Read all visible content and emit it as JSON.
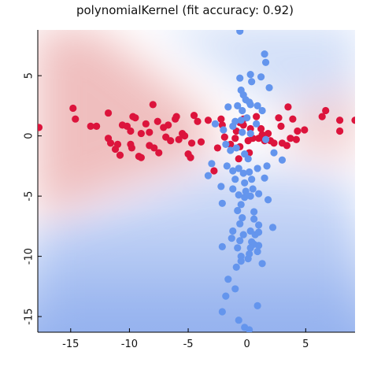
{
  "chart_data": {
    "type": "scatter",
    "title": "polynomialKernel (fit accuracy: 0.92)",
    "xlabel": "",
    "ylabel": "",
    "xlim": [
      -17.8,
      9.2
    ],
    "ylim": [
      -16.3,
      8.8
    ],
    "xticks": [
      -15,
      -10,
      -5,
      0,
      5
    ],
    "yticks": [
      5,
      0,
      -5,
      -10,
      -15
    ],
    "grid": false,
    "legend": "none",
    "background": "decision-region shading: red (class 1) in left and right wedges along y≈0, blue (class 2) above and below",
    "colors": {
      "class_red": "#dc143c",
      "class_blue": "#6495ed",
      "region_red": "#e8a3a3",
      "region_blue": "#7ea2ea"
    },
    "series": [
      {
        "color": "#dc143c",
        "points": [
          [
            -17.7,
            0.7
          ],
          [
            -14.8,
            2.3
          ],
          [
            -14.6,
            1.4
          ],
          [
            -13.3,
            0.8
          ],
          [
            -12.8,
            0.8
          ],
          [
            -11.8,
            1.9
          ],
          [
            -11.8,
            -0.2
          ],
          [
            -11.6,
            -0.6
          ],
          [
            -11.0,
            -0.7
          ],
          [
            -11.2,
            -1.1
          ],
          [
            -10.8,
            -1.6
          ],
          [
            -10.6,
            0.9
          ],
          [
            -10.2,
            0.8
          ],
          [
            -9.9,
            0.4
          ],
          [
            -9.8,
            -1.0
          ],
          [
            -9.9,
            -0.7
          ],
          [
            -9.7,
            1.6
          ],
          [
            -9.5,
            1.5
          ],
          [
            -9.2,
            -1.7
          ],
          [
            -9.0,
            0.2
          ],
          [
            -9.0,
            -1.8
          ],
          [
            -8.6,
            1.0
          ],
          [
            -8.3,
            0.3
          ],
          [
            -8.3,
            -0.8
          ],
          [
            -8.0,
            2.6
          ],
          [
            -7.9,
            -1.0
          ],
          [
            -7.6,
            1.2
          ],
          [
            -7.5,
            -1.4
          ],
          [
            -7.1,
            0.7
          ],
          [
            -6.9,
            -0.1
          ],
          [
            -6.7,
            0.9
          ],
          [
            -6.5,
            -0.4
          ],
          [
            -6.1,
            1.4
          ],
          [
            -6.0,
            1.6
          ],
          [
            -5.8,
            -0.3
          ],
          [
            -5.5,
            0.2
          ],
          [
            -5.3,
            0.0
          ],
          [
            -5.0,
            -1.5
          ],
          [
            -4.8,
            -1.8
          ],
          [
            -4.7,
            -0.6
          ],
          [
            -4.5,
            1.7
          ],
          [
            -4.2,
            1.2
          ],
          [
            -3.9,
            -0.5
          ],
          [
            -3.3,
            1.3
          ],
          [
            -2.8,
            -2.9
          ],
          [
            -2.5,
            -1.0
          ],
          [
            -2.2,
            1.4
          ],
          [
            -2.1,
            0.9
          ],
          [
            -1.9,
            -0.1
          ],
          [
            -1.4,
            -0.7
          ],
          [
            -1.0,
            -0.2
          ],
          [
            -0.9,
            0.4
          ],
          [
            -0.7,
            -1.9
          ],
          [
            -0.6,
            1.1
          ],
          [
            -0.6,
            -0.9
          ],
          [
            -0.3,
            1.4
          ],
          [
            -0.3,
            0.9
          ],
          [
            0.1,
            -0.4
          ],
          [
            0.2,
            -1.4
          ],
          [
            0.3,
            0.6
          ],
          [
            0.5,
            -0.2
          ],
          [
            0.8,
            1.6
          ],
          [
            1.0,
            -0.2
          ],
          [
            1.2,
            0.6
          ],
          [
            1.3,
            0.1
          ],
          [
            1.5,
            -0.4
          ],
          [
            1.8,
            0.2
          ],
          [
            2.0,
            -0.4
          ],
          [
            2.3,
            -0.6
          ],
          [
            2.7,
            1.5
          ],
          [
            2.9,
            0.8
          ],
          [
            3.0,
            -0.6
          ],
          [
            3.4,
            -0.8
          ],
          [
            3.5,
            2.4
          ],
          [
            3.7,
            -0.2
          ],
          [
            3.9,
            1.4
          ],
          [
            4.2,
            -0.3
          ],
          [
            4.3,
            0.4
          ],
          [
            4.9,
            0.5
          ],
          [
            6.4,
            1.6
          ],
          [
            6.7,
            2.1
          ],
          [
            7.9,
            0.4
          ],
          [
            7.9,
            1.3
          ],
          [
            9.2,
            1.3
          ]
        ]
      },
      {
        "color": "#6495ed",
        "points": [
          [
            -0.6,
            8.7
          ],
          [
            1.5,
            6.8
          ],
          [
            1.6,
            6.1
          ],
          [
            -0.6,
            4.8
          ],
          [
            0.3,
            5.1
          ],
          [
            0.4,
            4.5
          ],
          [
            1.2,
            4.9
          ],
          [
            1.9,
            4.0
          ],
          [
            -0.5,
            3.8
          ],
          [
            -0.3,
            3.4
          ],
          [
            -0.1,
            3.0
          ],
          [
            0.2,
            2.8
          ],
          [
            -1.6,
            2.4
          ],
          [
            -0.8,
            2.5
          ],
          [
            -0.4,
            2.1
          ],
          [
            0.3,
            2.6
          ],
          [
            0.9,
            2.5
          ],
          [
            1.3,
            2.1
          ],
          [
            -1.0,
            1.2
          ],
          [
            -0.5,
            1.3
          ],
          [
            0.0,
            1.5
          ],
          [
            0.8,
            1.0
          ],
          [
            -2.7,
            1.0
          ],
          [
            -2.0,
            0.5
          ],
          [
            -1.2,
            0.8
          ],
          [
            -0.4,
            0.3
          ],
          [
            0.3,
            0.2
          ],
          [
            1.6,
            -0.3
          ],
          [
            -1.8,
            -0.7
          ],
          [
            -1.4,
            -1.2
          ],
          [
            -0.9,
            -1.0
          ],
          [
            -0.2,
            -1.5
          ],
          [
            0.1,
            -1.9
          ],
          [
            2.3,
            -1.4
          ],
          [
            3.0,
            -2.0
          ],
          [
            -3.0,
            -2.3
          ],
          [
            -1.7,
            -2.5
          ],
          [
            -1.2,
            -2.9
          ],
          [
            -0.7,
            -2.7
          ],
          [
            -0.3,
            -3.1
          ],
          [
            0.2,
            -3.0
          ],
          [
            0.9,
            -2.7
          ],
          [
            1.7,
            -2.5
          ],
          [
            -3.3,
            -3.3
          ],
          [
            -1.0,
            -3.6
          ],
          [
            -0.2,
            -3.9
          ],
          [
            0.4,
            -3.6
          ],
          [
            1.5,
            -3.5
          ],
          [
            -2.2,
            -4.2
          ],
          [
            -1.2,
            -4.4
          ],
          [
            -0.7,
            -4.9
          ],
          [
            -0.1,
            -4.6
          ],
          [
            0.5,
            -4.4
          ],
          [
            1.0,
            -4.8
          ],
          [
            -2.1,
            -5.6
          ],
          [
            -0.5,
            -5.7
          ],
          [
            -0.2,
            -5.1
          ],
          [
            0.3,
            -5.0
          ],
          [
            1.8,
            -5.3
          ],
          [
            -0.8,
            -6.2
          ],
          [
            0.6,
            -6.3
          ],
          [
            -0.4,
            -6.8
          ],
          [
            0.6,
            -6.9
          ],
          [
            -0.6,
            -7.3
          ],
          [
            1.0,
            -7.4
          ],
          [
            2.2,
            -7.6
          ],
          [
            -1.2,
            -7.9
          ],
          [
            -0.3,
            -8.2
          ],
          [
            0.3,
            -7.9
          ],
          [
            0.7,
            -8.2
          ],
          [
            1.0,
            -8.0
          ],
          [
            -1.3,
            -8.5
          ],
          [
            -0.6,
            -8.7
          ],
          [
            0.4,
            -8.8
          ],
          [
            0.6,
            -9.0
          ],
          [
            -2.1,
            -9.2
          ],
          [
            -0.8,
            -9.3
          ],
          [
            0.3,
            -9.3
          ],
          [
            1.0,
            -9.1
          ],
          [
            -0.5,
            -10.0
          ],
          [
            0.2,
            -9.8
          ],
          [
            0.9,
            -9.6
          ],
          [
            -0.5,
            -10.4
          ],
          [
            0.1,
            -10.2
          ],
          [
            1.3,
            -10.6
          ],
          [
            -0.9,
            -10.9
          ],
          [
            -1.6,
            -11.9
          ],
          [
            -1.0,
            -12.7
          ],
          [
            -1.8,
            -13.3
          ],
          [
            -2.1,
            -14.6
          ],
          [
            0.9,
            -14.1
          ],
          [
            -0.7,
            -15.3
          ],
          [
            -0.2,
            -15.9
          ],
          [
            0.2,
            -16.1
          ]
        ]
      }
    ]
  }
}
